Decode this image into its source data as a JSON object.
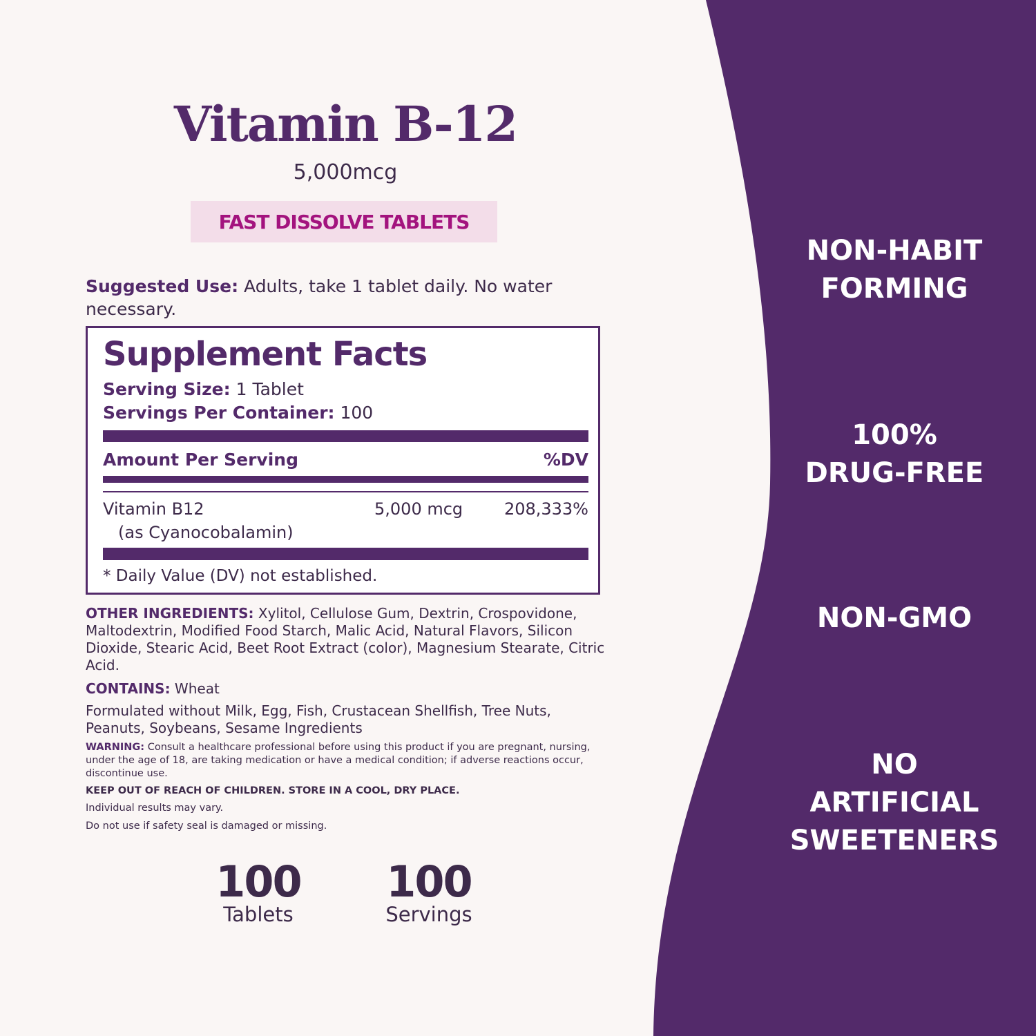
{
  "colors": {
    "brand_purple": "#532a6a",
    "badge_bg": "#f3dde9",
    "badge_text": "#a3137e",
    "background": "#faf6f5"
  },
  "product": {
    "title": "Vitamin B-12",
    "dose": "5,000mcg",
    "badge": "FAST DISSOLVE TABLETS"
  },
  "suggested_use": {
    "label": "Suggested Use:",
    "text": " Adults, take 1 tablet daily. No water necessary."
  },
  "facts": {
    "title": "Supplement Facts",
    "serving_size_label": "Serving Size:",
    "serving_size": " 1 Tablet",
    "servings_label": "Servings Per Container:",
    "servings": " 100",
    "amount_header": "Amount Per Serving",
    "dv_header": "%DV",
    "nutrient": {
      "name": "Vitamin B12",
      "form": "(as Cyanocobalamin)",
      "amount": "5,000 mcg",
      "dv": "208,333%"
    },
    "footnote": "* Daily Value (DV) not established."
  },
  "other_ingredients": {
    "label": "OTHER INGREDIENTS:",
    "text": " Xylitol, Cellulose Gum, Dextrin, Crospovidone, Maltodextrin, Modified Food Starch, Malic Acid, Natural Flavors, Silicon Dioxide, Stearic Acid, Beet Root Extract (color), Magnesium Stearate, Citric Acid."
  },
  "contains": {
    "label": "CONTAINS:",
    "text": " Wheat"
  },
  "formulated_without": "Formulated without Milk, Egg, Fish, Crustacean Shellfish, Tree Nuts, Peanuts, Soybeans, Sesame Ingredients",
  "warning": {
    "label": "WARNING:",
    "text": " Consult a healthcare professional before using this product if you are pregnant, nursing, under the age of 18, are taking medication or have a medical condition; if adverse reactions occur, discontinue use."
  },
  "keep_out": "KEEP OUT OF REACH OF CHILDREN. STORE IN A COOL, DRY PLACE.",
  "results": "Individual results may vary.",
  "seal": "Do not use if safety seal is damaged or missing.",
  "counts": [
    {
      "number": "100",
      "label": "Tablets"
    },
    {
      "number": "100",
      "label": "Servings"
    }
  ],
  "claims": [
    {
      "line1": "NON-HABIT",
      "line2": "FORMING"
    },
    {
      "line1": "100%",
      "line2": "DRUG-FREE"
    },
    {
      "line1": "NON-GMO"
    },
    {
      "line1": "NO",
      "line2": "ARTIFICIAL",
      "line3": "SWEETENERS"
    }
  ]
}
